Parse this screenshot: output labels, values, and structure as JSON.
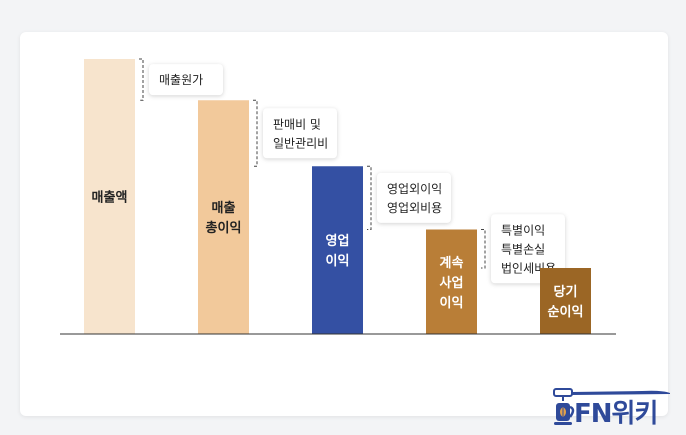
{
  "chart_data": {
    "type": "bar",
    "title": "",
    "xlabel": "",
    "ylabel": "",
    "categories": [
      [
        "매출액"
      ],
      [
        "매출",
        "총이익"
      ],
      [
        "영업",
        "이익"
      ],
      [
        "계속",
        "사업",
        "이익"
      ],
      [
        "당기",
        "순이익"
      ]
    ],
    "values": [
      100,
      85,
      61,
      38,
      24
    ],
    "bar_colors": [
      "#f7e4cd",
      "#f2c99b",
      "#3450a3",
      "#b97e37",
      "#9b6625"
    ],
    "label_colors": [
      "#222222",
      "#222222",
      "#ffffff",
      "#ffffff",
      "#ffffff"
    ],
    "deductions": [
      [
        "매출원가"
      ],
      [
        "판매비 및",
        "일반관리비"
      ],
      [
        "영업외이익",
        "영업외비용"
      ],
      [
        "특별이익",
        "특별손실",
        "법인세비용"
      ]
    ],
    "grid": false,
    "legend": "none"
  },
  "brand": {
    "name": "FN위키",
    "color": "#2f4a9a"
  }
}
